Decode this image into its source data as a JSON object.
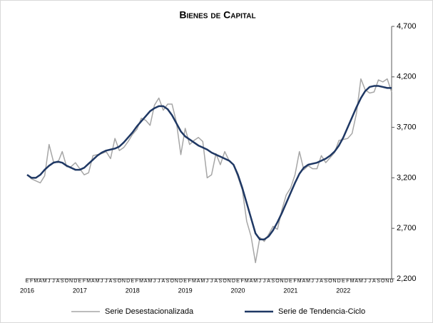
{
  "chart_data": {
    "type": "line",
    "title": "Bienes de Capital",
    "categories": [
      "E",
      "F",
      "M",
      "A",
      "M",
      "J",
      "J",
      "A",
      "S",
      "O",
      "N",
      "D",
      "E",
      "F",
      "M",
      "A",
      "M",
      "J",
      "J",
      "A",
      "S",
      "O",
      "N",
      "D",
      "E",
      "F",
      "M",
      "A",
      "M",
      "J",
      "J",
      "A",
      "S",
      "O",
      "N",
      "D",
      "E",
      "F",
      "M",
      "A",
      "M",
      "J",
      "J",
      "A",
      "S",
      "O",
      "N",
      "D",
      "E",
      "F",
      "M",
      "A",
      "M",
      "J",
      "J",
      "A",
      "S",
      "O",
      "N",
      "D",
      "E",
      "F",
      "M",
      "A",
      "M",
      "J",
      "J",
      "A",
      "S",
      "O",
      "N",
      "D",
      "E",
      "F",
      "M",
      "A",
      "M",
      "J",
      "J",
      "A",
      "S",
      "O",
      "N",
      "D"
    ],
    "years": [
      "2016",
      "2017",
      "2018",
      "2019",
      "2020",
      "2021",
      "2022"
    ],
    "series": [
      {
        "name": "Serie Desestacionalizada",
        "color": "#a6a6a6",
        "width": 1.5,
        "values": [
          3230,
          3190,
          3170,
          3150,
          3220,
          3530,
          3360,
          3350,
          3460,
          3310,
          3310,
          3350,
          3290,
          3230,
          3250,
          3420,
          3430,
          3440,
          3460,
          3390,
          3590,
          3470,
          3500,
          3560,
          3630,
          3680,
          3790,
          3770,
          3720,
          3920,
          3990,
          3870,
          3930,
          3930,
          3750,
          3430,
          3690,
          3530,
          3570,
          3600,
          3560,
          3200,
          3230,
          3440,
          3330,
          3460,
          3370,
          3330,
          3210,
          3080,
          2770,
          2620,
          2360,
          2610,
          2570,
          2640,
          2720,
          2690,
          2880,
          3030,
          3100,
          3230,
          3460,
          3280,
          3320,
          3290,
          3290,
          3420,
          3350,
          3400,
          3450,
          3570,
          3580,
          3590,
          3640,
          3840,
          4180,
          4070,
          4040,
          4050,
          4170,
          4150,
          4180,
          4050
        ]
      },
      {
        "name": "Serie de Tendencia-Ciclo",
        "color": "#1f3864",
        "width": 2.5,
        "values": [
          3230,
          3200,
          3200,
          3230,
          3280,
          3320,
          3350,
          3360,
          3350,
          3320,
          3300,
          3280,
          3280,
          3300,
          3340,
          3380,
          3420,
          3450,
          3470,
          3480,
          3490,
          3510,
          3550,
          3600,
          3650,
          3710,
          3760,
          3810,
          3860,
          3890,
          3910,
          3910,
          3880,
          3820,
          3740,
          3660,
          3610,
          3580,
          3550,
          3520,
          3500,
          3480,
          3450,
          3430,
          3410,
          3390,
          3370,
          3330,
          3230,
          3100,
          2950,
          2800,
          2650,
          2590,
          2590,
          2620,
          2680,
          2760,
          2850,
          2950,
          3050,
          3150,
          3240,
          3300,
          3330,
          3340,
          3350,
          3370,
          3390,
          3420,
          3460,
          3520,
          3600,
          3700,
          3800,
          3900,
          3990,
          4060,
          4100,
          4110,
          4110,
          4100,
          4090,
          4090
        ]
      }
    ],
    "ylim": [
      2200,
      4700
    ],
    "yticks": [
      {
        "value": 2200,
        "label": "2,200"
      },
      {
        "value": 2700,
        "label": "2,700"
      },
      {
        "value": 3200,
        "label": "3,200"
      },
      {
        "value": 3700,
        "label": "3,700"
      },
      {
        "value": 4200,
        "label": "4,200"
      },
      {
        "value": 4700,
        "label": "4,700"
      }
    ],
    "y_axis_side": "right",
    "legend": "bottom"
  }
}
